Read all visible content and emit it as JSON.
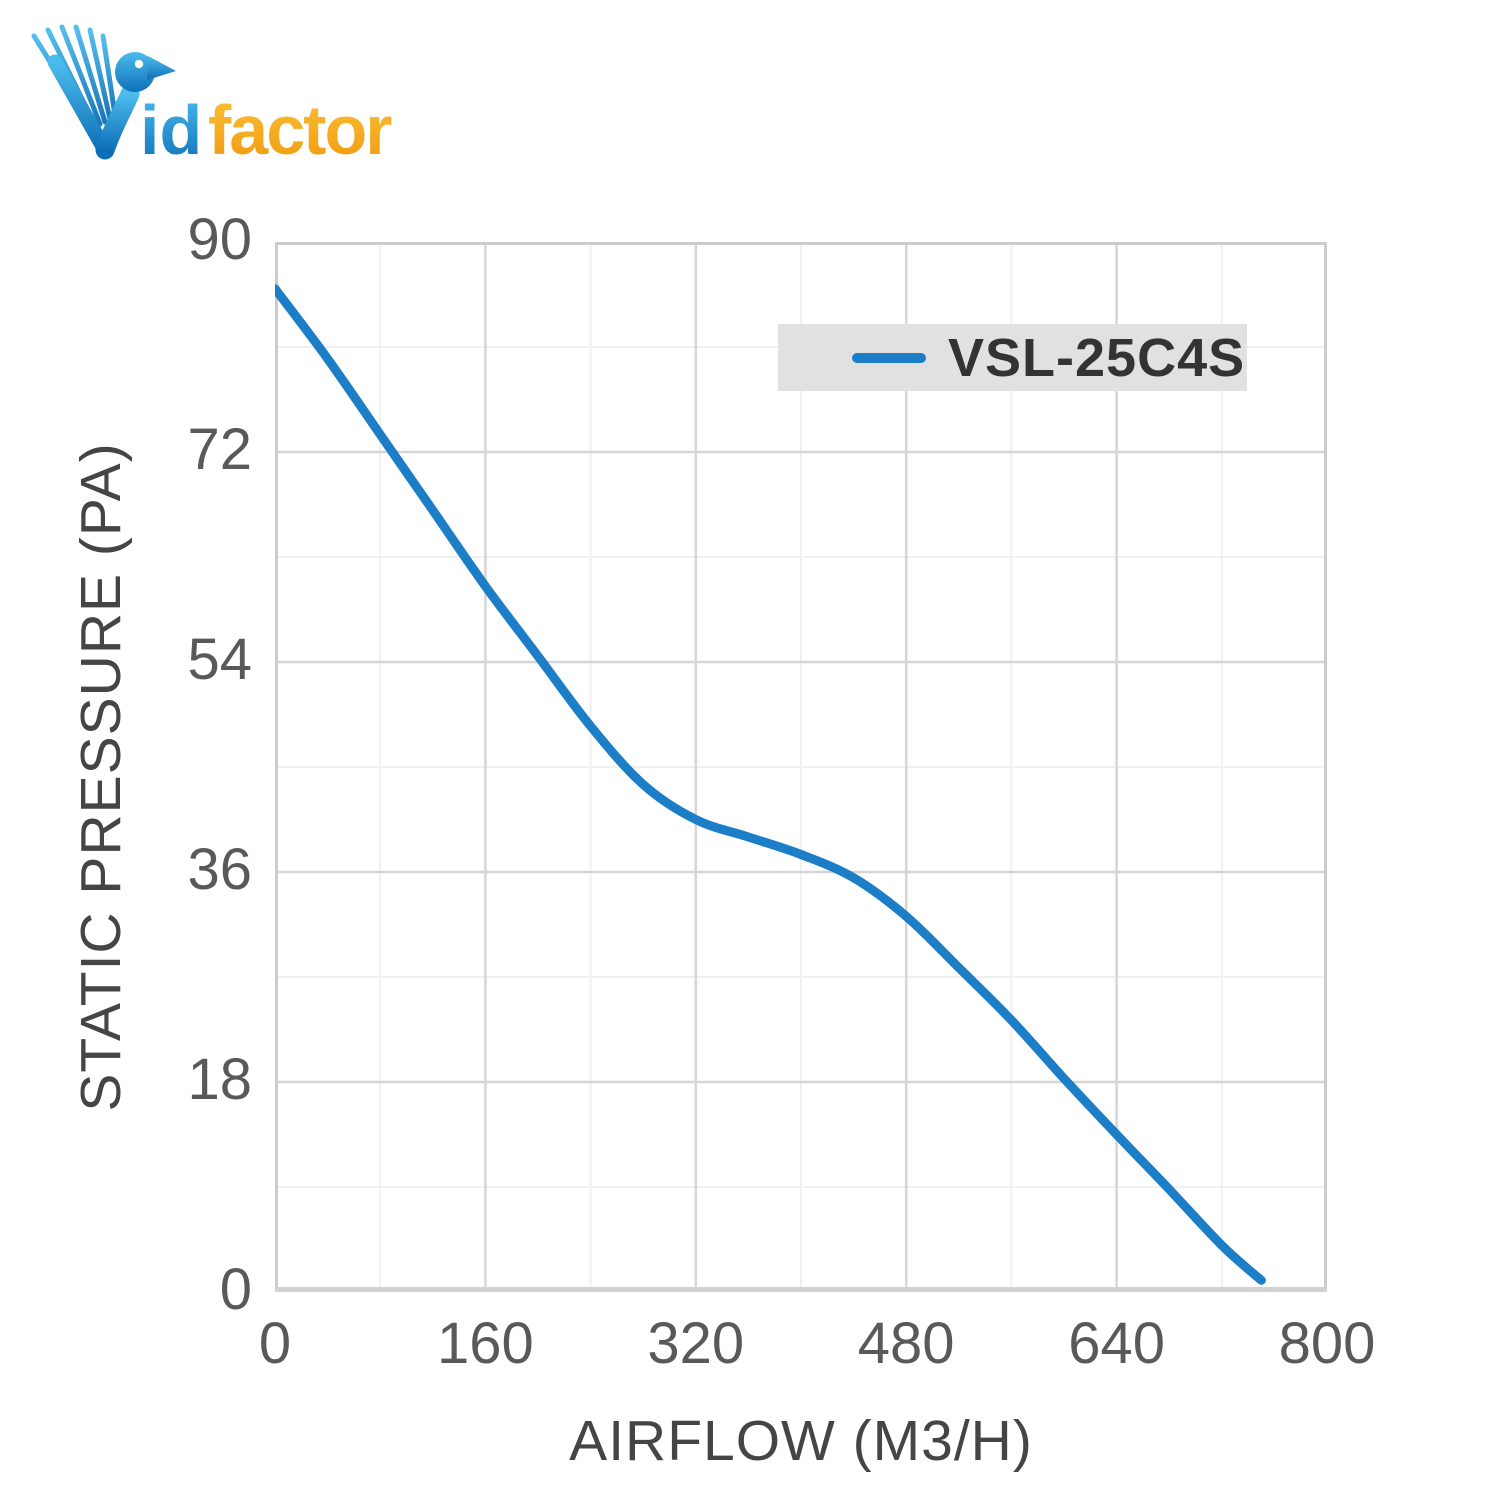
{
  "logo": {
    "icon": "dove-bird-icon",
    "text_blue": "id",
    "text_orange": "factor",
    "blue": "#1e8fd0",
    "blue_light": "#4cbcec",
    "orange": "#f6a316",
    "orange_light": "#fbc237"
  },
  "chart_data": {
    "type": "line",
    "title": "",
    "xlabel": "AIRFLOW (M3/H)",
    "ylabel": "STATIC PRESSURE (PA)",
    "xlim": [
      0,
      800
    ],
    "ylim": [
      0,
      90
    ],
    "x_ticks": [
      0,
      160,
      320,
      480,
      640,
      800
    ],
    "y_ticks": [
      0,
      18,
      36,
      54,
      72,
      90
    ],
    "x_minor_step": 80,
    "y_minor_step": 9,
    "grid": true,
    "legend": {
      "position": "top-right",
      "entries": [
        "VSL-25C4S"
      ]
    },
    "series": [
      {
        "name": "VSL-25C4S",
        "color": "#1b7ec6",
        "x": [
          0,
          40,
          80,
          120,
          160,
          200,
          240,
          280,
          320,
          360,
          400,
          440,
          480,
          520,
          560,
          600,
          640,
          680,
          720,
          750
        ],
        "y": [
          86,
          80,
          73.5,
          67,
          60.5,
          54.5,
          48.5,
          43.5,
          40.5,
          39,
          37.5,
          35.5,
          32.2,
          27.8,
          23.3,
          18.3,
          13.5,
          8.8,
          4,
          1
        ]
      }
    ]
  },
  "colors": {
    "grid_major": "#d6d6d6",
    "grid_minor": "#f0f0f0",
    "plot_border": "#cccccc",
    "axis_line": "#d2d2d2",
    "tick_label": "#595959",
    "axis_title": "#454545",
    "legend_bg": "#e1e1e1",
    "legend_text": "#333333"
  }
}
